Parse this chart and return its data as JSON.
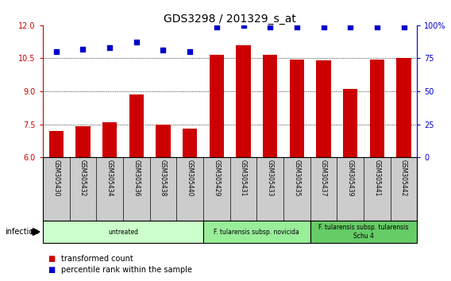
{
  "title": "GDS3298 / 201329_s_at",
  "samples": [
    "GSM305430",
    "GSM305432",
    "GSM305434",
    "GSM305436",
    "GSM305438",
    "GSM305440",
    "GSM305429",
    "GSM305431",
    "GSM305433",
    "GSM305435",
    "GSM305437",
    "GSM305439",
    "GSM305441",
    "GSM305442"
  ],
  "transformed_count": [
    7.2,
    7.4,
    7.6,
    8.85,
    7.5,
    7.3,
    10.65,
    11.1,
    10.65,
    10.45,
    10.42,
    9.1,
    10.45,
    10.52
  ],
  "percentile_rank": [
    80,
    82,
    83,
    87,
    81,
    80,
    99,
    100,
    99,
    99,
    99,
    99,
    99,
    99
  ],
  "bar_color": "#cc0000",
  "dot_color": "#0000cc",
  "ylim_left": [
    6,
    12
  ],
  "ylim_right": [
    0,
    100
  ],
  "yticks_left": [
    6,
    7.5,
    9,
    10.5,
    12
  ],
  "yticks_right": [
    0,
    25,
    50,
    75,
    100
  ],
  "groups": [
    {
      "label": "untreated",
      "start": 0,
      "end": 6,
      "color": "#ccffcc"
    },
    {
      "label": "F. tularensis subsp. novicida",
      "start": 6,
      "end": 10,
      "color": "#99ee99"
    },
    {
      "label": "F. tularensis subsp. tularensis\nSchu 4",
      "start": 10,
      "end": 14,
      "color": "#66cc66"
    }
  ],
  "infection_label": "infection",
  "legend_items": [
    {
      "color": "#cc0000",
      "label": "transformed count"
    },
    {
      "color": "#0000cc",
      "label": "percentile rank within the sample"
    }
  ],
  "bg_plot": "#ffffff",
  "bg_xaxis": "#cccccc",
  "title_fontsize": 10,
  "tick_fontsize": 7,
  "label_fontsize": 7.5,
  "bar_width": 0.55
}
